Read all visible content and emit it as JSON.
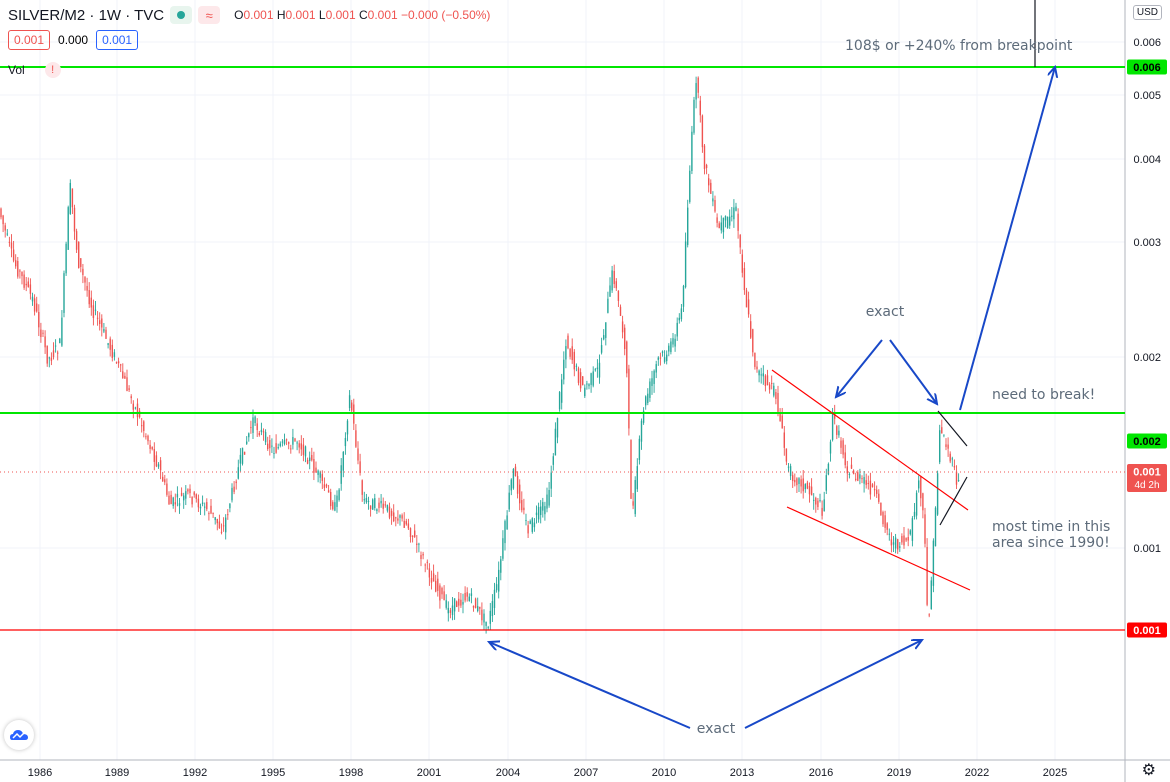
{
  "header": {
    "symbol": "SILVER/M2 · 1W · TVC",
    "ohlc": {
      "o_label": "O",
      "o": "0.001",
      "h_label": "H",
      "h": "0.001",
      "l_label": "L",
      "l": "0.001",
      "c_label": "C",
      "c": "0.001",
      "change": "−0.000 (−0.50%)"
    },
    "bid": "0.001",
    "spread": "0.000",
    "ask": "0.001",
    "volume_label": "Vol",
    "warning_glyph": "!",
    "currency": "USD",
    "status_dot_color": "#26a69a",
    "wave_glyph": "≈"
  },
  "chart_data": {
    "type": "candlestick",
    "x_axis_ticks": [
      "1986",
      "1989",
      "1992",
      "1995",
      "1998",
      "2001",
      "2004",
      "2007",
      "2010",
      "2013",
      "2016",
      "2019",
      "2022",
      "2025"
    ],
    "y_axis_ticks": [
      "0.006",
      "0.005",
      "0.004",
      "0.003",
      "0.002",
      "0.001"
    ],
    "y_scale": "log",
    "price_labels": [
      {
        "value": "0.006",
        "color": "#00e600"
      },
      {
        "value": "0.002",
        "color": "#00e600"
      },
      {
        "value": "0.001",
        "sub": "4d 2h",
        "color": "#ef5350"
      },
      {
        "value": "0.001",
        "color": "#ff0000"
      }
    ],
    "horizontal_levels": [
      {
        "name": "resistance-top",
        "color": "#00e600"
      },
      {
        "name": "breakpoint",
        "color": "#00e600"
      },
      {
        "name": "support-low",
        "color": "#ff0000"
      }
    ],
    "annotations": [
      {
        "id": "target",
        "text": "108$ or +240% from breakpoint"
      },
      {
        "id": "exact_top",
        "text": "exact"
      },
      {
        "id": "need_break",
        "text": "need to break!"
      },
      {
        "id": "most_time_1",
        "text": "most time in this"
      },
      {
        "id": "most_time_2",
        "text": "area since 1990!"
      },
      {
        "id": "exact_bottom",
        "text": "exact"
      }
    ],
    "colors": {
      "up": "#26a69a",
      "down": "#ef5350",
      "arrow": "#1848c8",
      "channel": "#ff0000",
      "grid": "#f0f3fa"
    },
    "grid": true
  }
}
